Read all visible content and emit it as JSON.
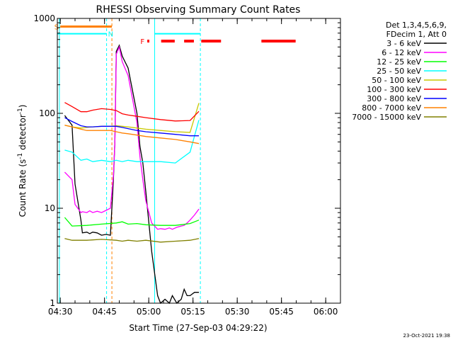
{
  "chart_data": {
    "type": "line",
    "title": "RHESSI Observing Summary Count Rates",
    "xlabel": "Start Time (27-Sep-03 04:29:22)",
    "ylabel_prefix": "Count Rate (s",
    "ylabel_sup1": "-1",
    "ylabel_mid": " detector",
    "ylabel_sup2": "-1",
    "ylabel_suffix": ")",
    "ylabel": "Count Rate (s-1 detector-1)",
    "yscale": "log",
    "ylim": [
      1,
      1000
    ],
    "xlim_min": [
      0,
      96
    ],
    "x_ticks": [
      {
        "m": 1,
        "label": "04:30"
      },
      {
        "m": 16,
        "label": "04:45"
      },
      {
        "m": 31,
        "label": "05:00"
      },
      {
        "m": 46,
        "label": "05:15"
      },
      {
        "m": 61,
        "label": "05:30"
      },
      {
        "m": 76,
        "label": "05:45"
      },
      {
        "m": 91,
        "label": "06:00"
      }
    ],
    "y_ticks": [
      {
        "v": 1,
        "label": "1"
      },
      {
        "v": 10,
        "label": "10"
      },
      {
        "v": 100,
        "label": "100"
      },
      {
        "v": 1000,
        "label": "1000"
      }
    ],
    "legend_header": [
      "Det 1,3,4,5,6,9,",
      "FDecim 1, Att 0"
    ],
    "series": [
      {
        "name": "3 - 6 keV",
        "color": "#000000",
        "x": [
          2.5,
          5,
          6,
          8,
          8.5,
          10,
          11,
          12,
          13.5,
          15,
          16.5,
          18,
          19,
          19.5,
          20,
          21,
          22,
          24,
          27,
          28,
          29,
          30,
          32,
          34,
          35,
          36.5,
          38,
          39,
          40.5,
          42,
          43,
          44,
          45,
          46.5,
          48
        ],
        "y": [
          95,
          75,
          18,
          7.5,
          5.5,
          5.6,
          5.4,
          5.6,
          5.5,
          5.2,
          5.3,
          5.2,
          20,
          50,
          450,
          520,
          400,
          300,
          100,
          45,
          30,
          15,
          3.5,
          1.2,
          1,
          1.1,
          1,
          1.2,
          1,
          1.1,
          1.4,
          1.2,
          1.2,
          1.3,
          1.3
        ]
      },
      {
        "name": "6 - 12 keV",
        "color": "#ff00ff",
        "x": [
          2.5,
          5,
          6,
          8,
          8.5,
          10,
          11,
          12,
          13.5,
          15,
          16.5,
          18,
          19,
          19.5,
          20,
          21,
          22,
          24,
          27,
          28,
          29,
          30,
          32,
          34,
          35,
          36.5,
          38,
          39,
          40.5,
          42,
          43,
          44,
          45,
          46.5,
          48
        ],
        "y": [
          24,
          20,
          11,
          9,
          9.2,
          9,
          9.4,
          9,
          9.3,
          9,
          9.5,
          10,
          22,
          50,
          420,
          500,
          350,
          250,
          80,
          35,
          20,
          12,
          7,
          6,
          6.1,
          6,
          6.2,
          6,
          6.3,
          6.5,
          6.6,
          7,
          7.5,
          8.5,
          9.8
        ]
      },
      {
        "name": "12 - 25 keV",
        "color": "#00ff00",
        "x": [
          2.5,
          5,
          10,
          15,
          20,
          22,
          24,
          27,
          30,
          35,
          40,
          45,
          48
        ],
        "y": [
          8,
          6.5,
          6.6,
          6.8,
          7,
          7.2,
          6.8,
          6.9,
          6.7,
          6.6,
          6.6,
          6.9,
          7.5
        ]
      },
      {
        "name": "25 - 50 keV",
        "color": "#00ffff",
        "x": [
          2.5,
          5,
          8,
          10,
          12,
          15,
          18,
          20,
          22,
          24,
          27,
          30,
          35,
          40,
          45,
          48
        ],
        "y": [
          41,
          39,
          32,
          33,
          31,
          32,
          31,
          32,
          31,
          32,
          31,
          31,
          31,
          30,
          39,
          85
        ]
      },
      {
        "name": "50 - 100 keV",
        "color": "#c8c800",
        "x": [
          2.5,
          5,
          8,
          10,
          12,
          15,
          18,
          20,
          22,
          24,
          27,
          30,
          35,
          40,
          45,
          48
        ],
        "y": [
          75,
          72,
          70,
          71,
          72,
          73,
          73,
          74,
          73,
          72,
          70,
          68,
          66,
          64,
          63,
          128
        ]
      },
      {
        "name": "100 - 300 keV",
        "color": "#ff0000",
        "x": [
          2.5,
          5,
          8,
          10,
          12,
          15,
          18,
          20,
          22,
          24,
          27,
          30,
          35,
          40,
          45,
          48
        ],
        "y": [
          130,
          118,
          104,
          104,
          108,
          112,
          110,
          107,
          99,
          96,
          93,
          90,
          86,
          83,
          84,
          105
        ]
      },
      {
        "name": "300 - 800 keV",
        "color": "#0000ff",
        "x": [
          2.5,
          5,
          8,
          10,
          12,
          15,
          18,
          20,
          22,
          24,
          27,
          30,
          35,
          40,
          45,
          48
        ],
        "y": [
          90,
          82,
          74,
          72,
          72,
          73,
          73,
          73,
          71,
          69,
          66,
          64,
          62,
          60,
          58,
          58
        ]
      },
      {
        "name": "800 - 7000 keV",
        "color": "#ff8000",
        "x": [
          2.5,
          5,
          8,
          10,
          12,
          15,
          18,
          20,
          22,
          24,
          27,
          30,
          35,
          40,
          45,
          48
        ],
        "y": [
          75,
          72,
          68,
          66,
          66,
          66,
          66,
          64,
          62,
          61,
          59,
          57,
          55,
          53,
          50,
          48
        ]
      },
      {
        "name": "7000 - 15000 keV",
        "color": "#808000",
        "x": [
          2.5,
          5,
          10,
          15,
          20,
          22,
          24,
          27,
          30,
          35,
          40,
          45,
          48
        ],
        "y": [
          4.8,
          4.6,
          4.6,
          4.7,
          4.6,
          4.5,
          4.6,
          4.5,
          4.6,
          4.4,
          4.5,
          4.6,
          4.8
        ]
      }
    ],
    "vertical_lines": [
      {
        "m": 0.7,
        "color": "#00ffff",
        "style": "solid"
      },
      {
        "m": 33,
        "color": "#00ffff",
        "style": "solid"
      },
      {
        "m": 16.7,
        "color": "#00ffff",
        "style": "dashed"
      },
      {
        "m": 18.5,
        "color": "#ff8000",
        "style": "dashed"
      },
      {
        "m": 48.5,
        "color": "#00ffff",
        "style": "dashed"
      }
    ],
    "annotations": {
      "saa_label": "S",
      "night_label": "N",
      "flare_label": "F",
      "saa_bar": {
        "m0": 1,
        "m1": 18.5,
        "value": 820,
        "color": "#ff8000"
      },
      "night_bars": [
        {
          "m0": 0,
          "m1": 16.7,
          "value": 690,
          "color": "#00ffff"
        },
        {
          "m0": 33,
          "m1": 48.5,
          "value": 690,
          "color": "#00ffff"
        }
      ],
      "flare_bars": [
        {
          "m0": 30.5,
          "m1": 31.2
        },
        {
          "m0": 35.2,
          "m1": 39.8
        },
        {
          "m0": 43,
          "m1": 46.3
        },
        {
          "m0": 48.8,
          "m1": 55.5
        },
        {
          "m0": 69.2,
          "m1": 80.8
        }
      ]
    },
    "timestamp": "23-Oct-2021 19:38"
  }
}
